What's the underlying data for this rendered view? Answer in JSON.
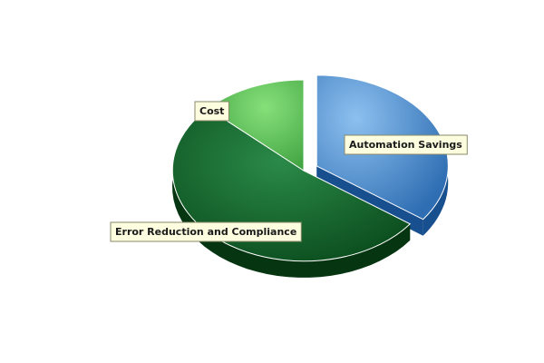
{
  "chart_data": {
    "type": "pie",
    "style": "3d-exploded",
    "title": "",
    "slices": [
      {
        "label": "Automation Savings",
        "value": 35,
        "color": "#4d8fd1"
      },
      {
        "label": "Error Reduction and Compliance",
        "value": 52,
        "color": "#146b30"
      },
      {
        "label": "Cost",
        "value": 13,
        "color": "#62c35c"
      }
    ],
    "exploded": "Automation Savings",
    "legend": "none",
    "label_style": "callout boxes with light yellow background"
  }
}
